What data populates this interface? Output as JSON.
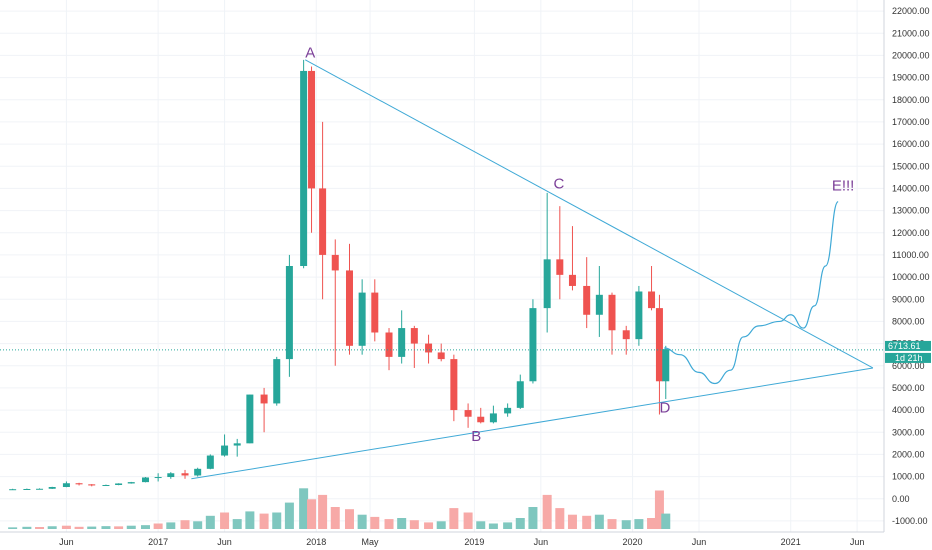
{
  "chart_data": {
    "type": "candlestick",
    "title": "",
    "xlabel": "",
    "ylabel": "",
    "ylim": [
      -1500,
      22500
    ],
    "grid": true,
    "colors": {
      "up": "#26a69a",
      "down": "#ef5350",
      "up_volume": "#7fc7bf",
      "down_volume": "#f7a9a7",
      "trendline": "#3fa9d6",
      "annotation": "#7b3f98",
      "grid": "#f0f3f7"
    },
    "y_ticks": [
      -1000,
      0,
      1000,
      2000,
      3000,
      4000,
      5000,
      6000,
      7000,
      8000,
      9000,
      10000,
      11000,
      12000,
      13000,
      14000,
      15000,
      16000,
      17000,
      18000,
      19000,
      20000,
      21000,
      22000
    ],
    "x_ticks": [
      {
        "label": "Jun",
        "t": 2016.42
      },
      {
        "label": "2017",
        "t": 2017.0
      },
      {
        "label": "Jun",
        "t": 2017.42
      },
      {
        "label": "2018",
        "t": 2018.0
      },
      {
        "label": "May",
        "t": 2018.34
      },
      {
        "label": "2019",
        "t": 2019.0
      },
      {
        "label": "Jun",
        "t": 2019.42
      },
      {
        "label": "2020",
        "t": 2020.0
      },
      {
        "label": "Jun",
        "t": 2020.42
      },
      {
        "label": "2021",
        "t": 2021.0
      },
      {
        "label": "Jun",
        "t": 2021.42
      }
    ],
    "candles": [
      {
        "t": 2016.08,
        "o": 420,
        "h": 450,
        "l": 400,
        "c": 430
      },
      {
        "t": 2016.17,
        "o": 430,
        "h": 460,
        "l": 410,
        "c": 440
      },
      {
        "t": 2016.25,
        "o": 440,
        "h": 470,
        "l": 420,
        "c": 450
      },
      {
        "t": 2016.33,
        "o": 450,
        "h": 540,
        "l": 440,
        "c": 530
      },
      {
        "t": 2016.42,
        "o": 530,
        "h": 780,
        "l": 520,
        "c": 700
      },
      {
        "t": 2016.5,
        "o": 700,
        "h": 720,
        "l": 600,
        "c": 650
      },
      {
        "t": 2016.58,
        "o": 650,
        "h": 660,
        "l": 560,
        "c": 600
      },
      {
        "t": 2016.67,
        "o": 600,
        "h": 640,
        "l": 590,
        "c": 620
      },
      {
        "t": 2016.75,
        "o": 620,
        "h": 700,
        "l": 610,
        "c": 690
      },
      {
        "t": 2016.83,
        "o": 690,
        "h": 760,
        "l": 680,
        "c": 750
      },
      {
        "t": 2016.92,
        "o": 750,
        "h": 980,
        "l": 740,
        "c": 960
      },
      {
        "t": 2017.0,
        "o": 960,
        "h": 1150,
        "l": 780,
        "c": 980
      },
      {
        "t": 2017.08,
        "o": 980,
        "h": 1200,
        "l": 900,
        "c": 1150
      },
      {
        "t": 2017.17,
        "o": 1150,
        "h": 1300,
        "l": 900,
        "c": 1050
      },
      {
        "t": 2017.25,
        "o": 1050,
        "h": 1400,
        "l": 1000,
        "c": 1350
      },
      {
        "t": 2017.33,
        "o": 1350,
        "h": 2000,
        "l": 1330,
        "c": 1950
      },
      {
        "t": 2017.42,
        "o": 1950,
        "h": 2900,
        "l": 1900,
        "c": 2400
      },
      {
        "t": 2017.5,
        "o": 2400,
        "h": 2700,
        "l": 1900,
        "c": 2500
      },
      {
        "t": 2017.58,
        "o": 2500,
        "h": 4700,
        "l": 2500,
        "c": 4700
      },
      {
        "t": 2017.67,
        "o": 4700,
        "h": 5000,
        "l": 3000,
        "c": 4300
      },
      {
        "t": 2017.75,
        "o": 4300,
        "h": 6400,
        "l": 4200,
        "c": 6300
      },
      {
        "t": 2017.83,
        "o": 6300,
        "h": 11000,
        "l": 5500,
        "c": 10500
      },
      {
        "t": 2017.92,
        "o": 10500,
        "h": 19800,
        "l": 10400,
        "c": 19300
      },
      {
        "t": 2017.97,
        "o": 19300,
        "h": 19500,
        "l": 12000,
        "c": 14000
      },
      {
        "t": 2018.04,
        "o": 14000,
        "h": 17000,
        "l": 9000,
        "c": 11000
      },
      {
        "t": 2018.12,
        "o": 11000,
        "h": 11700,
        "l": 6000,
        "c": 10300
      },
      {
        "t": 2018.21,
        "o": 10300,
        "h": 11500,
        "l": 6500,
        "c": 6900
      },
      {
        "t": 2018.29,
        "o": 6900,
        "h": 9900,
        "l": 6500,
        "c": 9300
      },
      {
        "t": 2018.37,
        "o": 9300,
        "h": 9900,
        "l": 7100,
        "c": 7500
      },
      {
        "t": 2018.46,
        "o": 7500,
        "h": 7700,
        "l": 5800,
        "c": 6400
      },
      {
        "t": 2018.54,
        "o": 6400,
        "h": 8500,
        "l": 6100,
        "c": 7700
      },
      {
        "t": 2018.62,
        "o": 7700,
        "h": 7800,
        "l": 5900,
        "c": 7000
      },
      {
        "t": 2018.71,
        "o": 7000,
        "h": 7400,
        "l": 6100,
        "c": 6600
      },
      {
        "t": 2018.79,
        "o": 6600,
        "h": 7000,
        "l": 6200,
        "c": 6300
      },
      {
        "t": 2018.87,
        "o": 6300,
        "h": 6500,
        "l": 3500,
        "c": 4000
      },
      {
        "t": 2018.96,
        "o": 4000,
        "h": 4300,
        "l": 3200,
        "c": 3700
      },
      {
        "t": 2019.04,
        "o": 3700,
        "h": 4100,
        "l": 3400,
        "c": 3450
      },
      {
        "t": 2019.12,
        "o": 3450,
        "h": 4200,
        "l": 3400,
        "c": 3850
      },
      {
        "t": 2019.21,
        "o": 3850,
        "h": 4300,
        "l": 3700,
        "c": 4100
      },
      {
        "t": 2019.29,
        "o": 4100,
        "h": 5600,
        "l": 4050,
        "c": 5300
      },
      {
        "t": 2019.37,
        "o": 5300,
        "h": 9000,
        "l": 5200,
        "c": 8600
      },
      {
        "t": 2019.46,
        "o": 8600,
        "h": 13800,
        "l": 7500,
        "c": 10800
      },
      {
        "t": 2019.54,
        "o": 10800,
        "h": 13200,
        "l": 9000,
        "c": 10100
      },
      {
        "t": 2019.62,
        "o": 10100,
        "h": 12300,
        "l": 9400,
        "c": 9600
      },
      {
        "t": 2019.71,
        "o": 9600,
        "h": 10900,
        "l": 7700,
        "c": 8300
      },
      {
        "t": 2019.79,
        "o": 8300,
        "h": 10500,
        "l": 7300,
        "c": 9200
      },
      {
        "t": 2019.87,
        "o": 9200,
        "h": 9300,
        "l": 6500,
        "c": 7600
      },
      {
        "t": 2019.96,
        "o": 7600,
        "h": 7800,
        "l": 6500,
        "c": 7200
      },
      {
        "t": 2020.04,
        "o": 7200,
        "h": 9600,
        "l": 6900,
        "c": 9350
      },
      {
        "t": 2020.12,
        "o": 9350,
        "h": 10500,
        "l": 8500,
        "c": 8600
      },
      {
        "t": 2020.17,
        "o": 8600,
        "h": 9200,
        "l": 3800,
        "c": 5300
      },
      {
        "t": 2020.21,
        "o": 5300,
        "h": 6900,
        "l": 4500,
        "c": 6750
      }
    ],
    "volume": [
      {
        "t": 2016.08,
        "v": 150,
        "up": true
      },
      {
        "t": 2016.17,
        "v": 200,
        "up": true
      },
      {
        "t": 2016.25,
        "v": 180,
        "up": false
      },
      {
        "t": 2016.33,
        "v": 250,
        "up": true
      },
      {
        "t": 2016.42,
        "v": 300,
        "up": false
      },
      {
        "t": 2016.5,
        "v": 200,
        "up": false
      },
      {
        "t": 2016.58,
        "v": 220,
        "up": true
      },
      {
        "t": 2016.67,
        "v": 260,
        "up": true
      },
      {
        "t": 2016.75,
        "v": 240,
        "up": false
      },
      {
        "t": 2016.83,
        "v": 300,
        "up": true
      },
      {
        "t": 2016.92,
        "v": 350,
        "up": true
      },
      {
        "t": 2017.0,
        "v": 500,
        "up": false
      },
      {
        "t": 2017.08,
        "v": 600,
        "up": true
      },
      {
        "t": 2017.17,
        "v": 800,
        "up": false
      },
      {
        "t": 2017.25,
        "v": 700,
        "up": true
      },
      {
        "t": 2017.33,
        "v": 1200,
        "up": true
      },
      {
        "t": 2017.42,
        "v": 1500,
        "up": false
      },
      {
        "t": 2017.5,
        "v": 900,
        "up": true
      },
      {
        "t": 2017.58,
        "v": 1600,
        "up": true
      },
      {
        "t": 2017.67,
        "v": 1400,
        "up": false
      },
      {
        "t": 2017.75,
        "v": 1500,
        "up": true
      },
      {
        "t": 2017.83,
        "v": 2400,
        "up": true
      },
      {
        "t": 2017.92,
        "v": 3700,
        "up": true
      },
      {
        "t": 2017.97,
        "v": 2700,
        "up": false
      },
      {
        "t": 2018.04,
        "v": 3100,
        "up": false
      },
      {
        "t": 2018.12,
        "v": 2000,
        "up": false
      },
      {
        "t": 2018.21,
        "v": 1800,
        "up": false
      },
      {
        "t": 2018.29,
        "v": 1300,
        "up": true
      },
      {
        "t": 2018.37,
        "v": 1100,
        "up": false
      },
      {
        "t": 2018.46,
        "v": 900,
        "up": false
      },
      {
        "t": 2018.54,
        "v": 1000,
        "up": true
      },
      {
        "t": 2018.62,
        "v": 800,
        "up": false
      },
      {
        "t": 2018.71,
        "v": 600,
        "up": false
      },
      {
        "t": 2018.79,
        "v": 700,
        "up": true
      },
      {
        "t": 2018.87,
        "v": 1900,
        "up": false
      },
      {
        "t": 2018.96,
        "v": 1500,
        "up": false
      },
      {
        "t": 2019.04,
        "v": 700,
        "up": true
      },
      {
        "t": 2019.12,
        "v": 500,
        "up": true
      },
      {
        "t": 2019.21,
        "v": 600,
        "up": true
      },
      {
        "t": 2019.29,
        "v": 1000,
        "up": true
      },
      {
        "t": 2019.37,
        "v": 2000,
        "up": true
      },
      {
        "t": 2019.46,
        "v": 3100,
        "up": false
      },
      {
        "t": 2019.54,
        "v": 1900,
        "up": false
      },
      {
        "t": 2019.62,
        "v": 1300,
        "up": false
      },
      {
        "t": 2019.71,
        "v": 1200,
        "up": false
      },
      {
        "t": 2019.79,
        "v": 1300,
        "up": true
      },
      {
        "t": 2019.87,
        "v": 900,
        "up": false
      },
      {
        "t": 2019.96,
        "v": 800,
        "up": true
      },
      {
        "t": 2020.04,
        "v": 900,
        "up": true
      },
      {
        "t": 2020.12,
        "v": 1000,
        "up": false
      },
      {
        "t": 2020.17,
        "v": 3500,
        "up": false
      },
      {
        "t": 2020.21,
        "v": 1400,
        "up": true
      }
    ],
    "annotations": [
      {
        "label": "A",
        "t": 2017.93,
        "y": 19900
      },
      {
        "label": "B",
        "t": 2018.98,
        "y": 2600
      },
      {
        "label": "C",
        "t": 2019.5,
        "y": 14000
      },
      {
        "label": "D",
        "t": 2020.17,
        "y": 3900
      },
      {
        "label": "E!!!",
        "t": 2021.26,
        "y": 13900
      }
    ],
    "trendlines": [
      {
        "points": [
          {
            "t": 2017.93,
            "y": 19800
          },
          {
            "t": 2021.52,
            "y": 5900
          }
        ]
      },
      {
        "points": [
          {
            "t": 2017.21,
            "y": 900
          },
          {
            "t": 2021.52,
            "y": 5900
          }
        ]
      }
    ],
    "projection": [
      {
        "t": 2020.2,
        "y": 6800
      },
      {
        "t": 2020.3,
        "y": 6500
      },
      {
        "t": 2020.42,
        "y": 5700
      },
      {
        "t": 2020.52,
        "y": 5200
      },
      {
        "t": 2020.62,
        "y": 5800
      },
      {
        "t": 2020.7,
        "y": 7300
      },
      {
        "t": 2020.8,
        "y": 7800
      },
      {
        "t": 2020.93,
        "y": 8000
      },
      {
        "t": 2021.0,
        "y": 8300
      },
      {
        "t": 2021.08,
        "y": 7700
      },
      {
        "t": 2021.15,
        "y": 8700
      },
      {
        "t": 2021.22,
        "y": 10500
      },
      {
        "t": 2021.3,
        "y": 13400
      }
    ],
    "price_line": {
      "value": 6713.61,
      "label": "6713.61",
      "countdown": "1d 21h",
      "third_label": "6000.00"
    }
  }
}
